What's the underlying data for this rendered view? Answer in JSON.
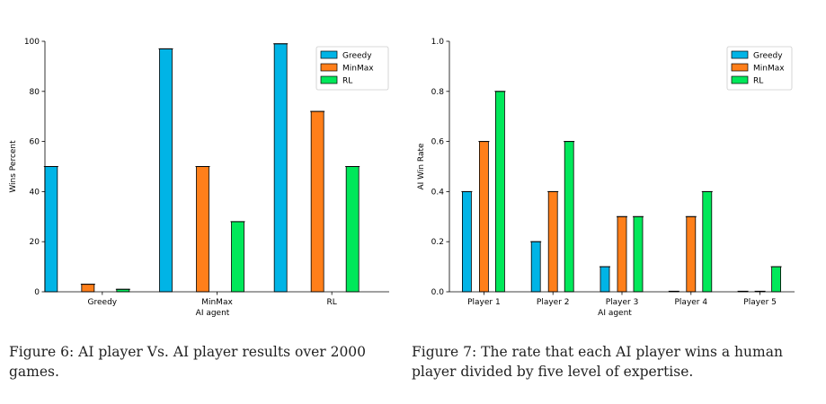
{
  "colors": {
    "Greedy": "#00b4e6",
    "MinMax": "#ff7f1a",
    "RL": "#00e85a"
  },
  "captions": [
    "Figure 6: AI player Vs. AI player results over 2000 games.",
    "Figure 7: The rate that each AI player wins a human player divided by five level of expertise."
  ],
  "chart_data": [
    {
      "type": "bar",
      "title": "",
      "xlabel": "AI agent",
      "ylabel": "Wins Percent",
      "categories": [
        "Greedy",
        "MinMax",
        "RL"
      ],
      "series": [
        {
          "name": "Greedy",
          "values": [
            50,
            97,
            99
          ]
        },
        {
          "name": "MinMax",
          "values": [
            3,
            50,
            72
          ]
        },
        {
          "name": "RL",
          "values": [
            1,
            28,
            50
          ]
        }
      ],
      "ylim": [
        0,
        100
      ],
      "yticks": [
        "0",
        "20",
        "40",
        "60",
        "80",
        "100"
      ],
      "legend": "top-right",
      "grid": false
    },
    {
      "type": "bar",
      "title": "",
      "xlabel": "AI agent",
      "ylabel": "AI Win Rate",
      "categories": [
        "Player 1",
        "Player 2",
        "Player 3",
        "Player 4",
        "Player 5"
      ],
      "series": [
        {
          "name": "Greedy",
          "values": [
            0.4,
            0.2,
            0.1,
            0.0,
            0.0
          ]
        },
        {
          "name": "MinMax",
          "values": [
            0.6,
            0.4,
            0.3,
            0.3,
            0.0
          ]
        },
        {
          "name": "RL",
          "values": [
            0.8,
            0.6,
            0.3,
            0.4,
            0.1
          ]
        }
      ],
      "ylim": [
        0,
        1.0
      ],
      "yticks": [
        "0.0",
        "0.2",
        "0.4",
        "0.6",
        "0.8",
        "1.0"
      ],
      "legend": "top-right",
      "grid": false
    }
  ]
}
